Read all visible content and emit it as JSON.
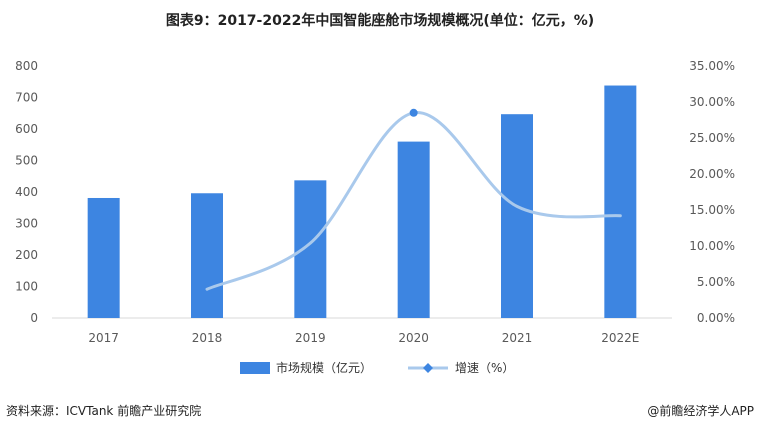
{
  "chart_data": {
    "type": "bar",
    "title": "图表9：2017-2022年中国智能座舱市场规模概况(单位：亿元，%)",
    "categories": [
      "2017",
      "2018",
      "2019",
      "2020",
      "2021",
      "2022E"
    ],
    "series": [
      {
        "name": "市场规模（亿元）",
        "type": "bar",
        "axis": "left",
        "color": "#3D85E1",
        "values": [
          381,
          396,
          437,
          560,
          647,
          738
        ]
      },
      {
        "name": "增速（%）",
        "type": "line",
        "axis": "right",
        "color": "#A9C9EC",
        "smooth": true,
        "values": [
          null,
          4.0,
          10.4,
          28.5,
          15.5,
          14.2
        ]
      }
    ],
    "left_axis": {
      "min": 0,
      "max": 800,
      "step": 100,
      "ticks": [
        "0",
        "100",
        "200",
        "300",
        "400",
        "500",
        "600",
        "700",
        "800"
      ]
    },
    "right_axis": {
      "min": 0,
      "max": 35,
      "step": 5,
      "ticks": [
        "0.00%",
        "5.00%",
        "10.00%",
        "15.00%",
        "20.00%",
        "25.00%",
        "30.00%",
        "35.00%"
      ]
    },
    "grid": false,
    "legend_position": "bottom"
  },
  "footer": {
    "source": "资料来源：ICVTank 前瞻产业研究院",
    "credit": "@前瞻经济学人APP"
  }
}
